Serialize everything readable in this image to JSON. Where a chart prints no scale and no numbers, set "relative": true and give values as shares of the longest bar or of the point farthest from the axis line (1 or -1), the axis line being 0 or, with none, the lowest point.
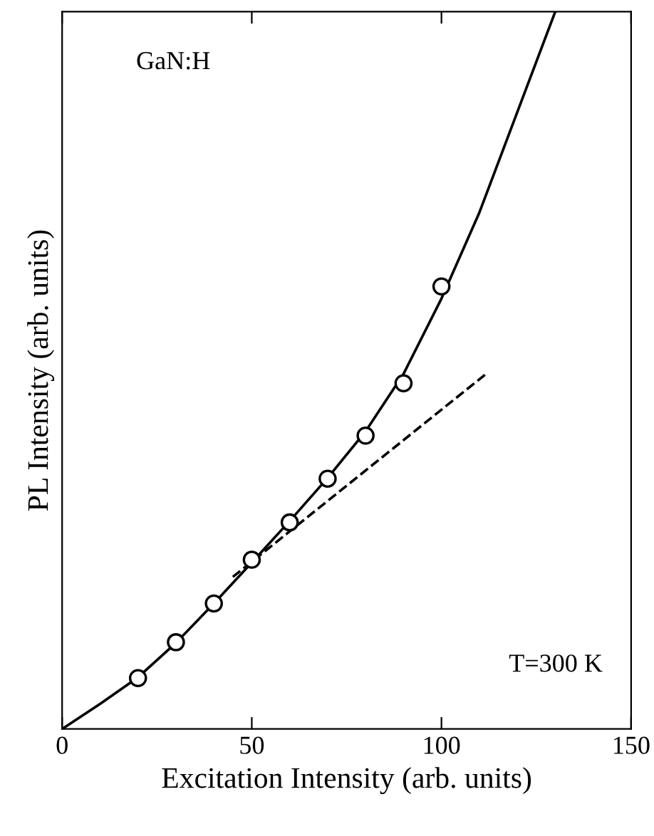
{
  "chart_data": {
    "type": "scatter",
    "relative": true,
    "xlabel": "Excitation Intensity (arb. units)",
    "ylabel": "PL Intensity (arb. units)",
    "xlim": [
      0,
      150
    ],
    "xticks": [
      0,
      50,
      100,
      150
    ],
    "grid": false,
    "legend": false,
    "annotations": [
      "GaN:H",
      "T=300 K"
    ],
    "series": [
      {
        "marker": "circle",
        "color": "#000000",
        "x": [
          20,
          30,
          40,
          50,
          60,
          70,
          80,
          90,
          100
        ],
        "values": [
          0.071,
          0.121,
          0.175,
          0.236,
          0.288,
          0.349,
          0.409,
          0.482,
          0.617
        ]
      },
      {
        "type": "line",
        "line_style": "solid",
        "marker": "none",
        "color": "#000000",
        "x": [
          0,
          10,
          20,
          30,
          40,
          50,
          60,
          70,
          80,
          90,
          100,
          110,
          120,
          130
        ],
        "values": [
          0,
          0.035,
          0.072,
          0.12,
          0.175,
          0.232,
          0.29,
          0.35,
          0.415,
          0.495,
          0.6,
          0.72,
          0.86,
          1.0
        ]
      },
      {
        "type": "line",
        "line_style": "dashed",
        "marker": "none",
        "color": "#000000",
        "x": [
          45,
          112
        ],
        "values": [
          0.212,
          0.496
        ]
      }
    ]
  }
}
